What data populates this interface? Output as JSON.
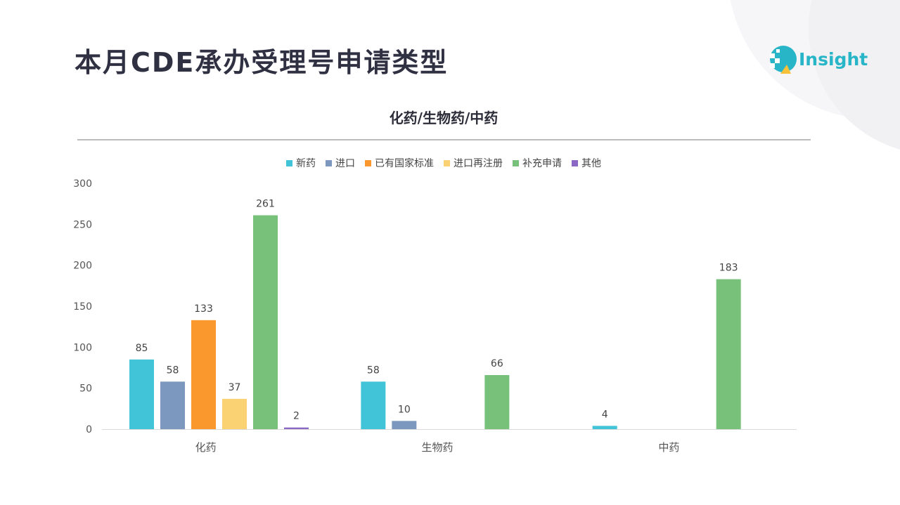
{
  "header": {
    "title": "本月CDE承办受理号申请类型",
    "logo_text": "Insight"
  },
  "colors": {
    "title": "#2f3042",
    "accent": "#27b5c7"
  },
  "chart_data": {
    "type": "bar",
    "title": "化药/生物药/中药",
    "xlabel": "",
    "ylabel": "",
    "categories": [
      "化药",
      "生物药",
      "中药"
    ],
    "ylim": [
      0,
      300
    ],
    "yticks": [
      0,
      50,
      100,
      150,
      200,
      250,
      300
    ],
    "grid": false,
    "legend_position": "top",
    "series": [
      {
        "name": "新药",
        "color": "#41c4d8",
        "values": [
          85,
          58,
          4
        ]
      },
      {
        "name": "进口",
        "color": "#7d98bf",
        "values": [
          58,
          10,
          null
        ]
      },
      {
        "name": "已有国家标准",
        "color": "#fb982d",
        "values": [
          133,
          null,
          null
        ]
      },
      {
        "name": "进口再注册",
        "color": "#fad274",
        "values": [
          37,
          null,
          null
        ]
      },
      {
        "name": "补充申请",
        "color": "#77c17b",
        "values": [
          261,
          66,
          183
        ]
      },
      {
        "name": "其他",
        "color": "#8a68c3",
        "values": [
          2,
          null,
          null
        ]
      }
    ]
  }
}
